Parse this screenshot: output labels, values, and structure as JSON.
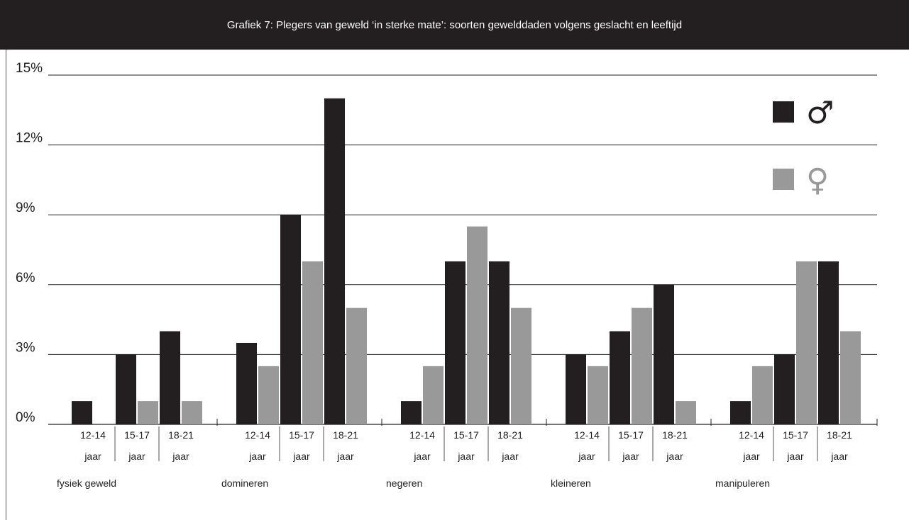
{
  "chart_data": {
    "type": "bar",
    "title": "Grafiek 7: Plegers van geweld ‘in sterke mate’: soorten gewelddaden volgens geslacht en leeftijd",
    "ylim": [
      0,
      15
    ],
    "yticks": [
      0,
      3,
      6,
      9,
      12,
      15
    ],
    "ytick_labels": [
      "0%",
      "3%",
      "6%",
      "9%",
      "12%",
      "15%"
    ],
    "groups": [
      "fysiek geweld",
      "domineren",
      "negeren",
      "kleineren",
      "manipuleren"
    ],
    "age_labels": [
      "12-14",
      "15-17",
      "18-21"
    ],
    "age_unit": "jaar",
    "series": [
      {
        "name": "♂",
        "color": "#231f20",
        "values": [
          [
            1,
            3,
            4
          ],
          [
            3.5,
            9,
            14
          ],
          [
            1,
            7,
            7
          ],
          [
            3,
            4,
            6
          ],
          [
            1,
            3,
            7
          ]
        ]
      },
      {
        "name": "♀",
        "color": "#999999",
        "values": [
          [
            0,
            1,
            1
          ],
          [
            2.5,
            7,
            5
          ],
          [
            2.5,
            8.5,
            5
          ],
          [
            2.5,
            5,
            1
          ],
          [
            2.5,
            7,
            4
          ]
        ]
      }
    ],
    "legend_position": "top-right",
    "grid": true
  }
}
